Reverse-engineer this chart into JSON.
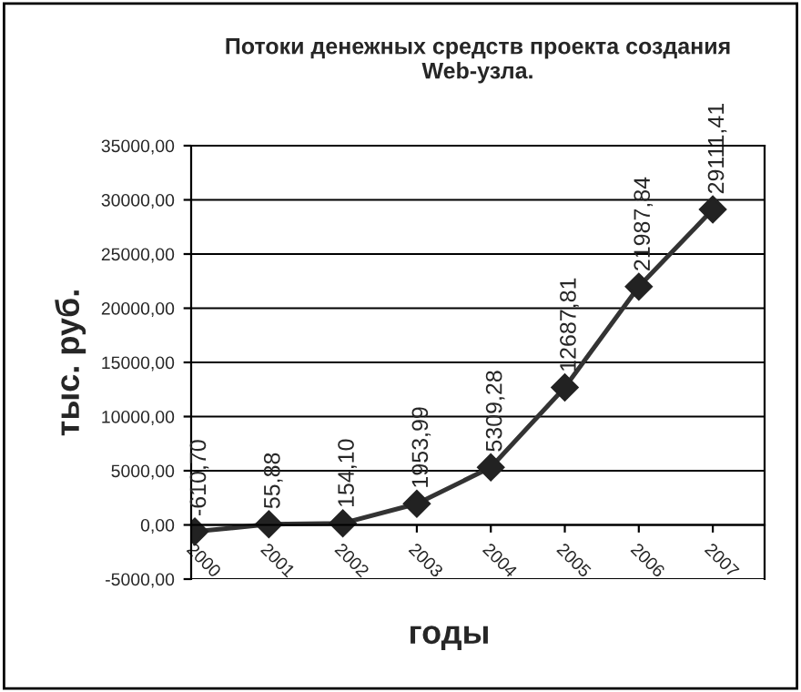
{
  "chart_data": {
    "type": "line",
    "title": "Потоки денежных средств проекта создания\nWeb-узла.",
    "xlabel": "годы",
    "ylabel": "тыс. руб.",
    "categories": [
      "2000",
      "2001",
      "2002",
      "2003",
      "2004",
      "2005",
      "2006",
      "2007"
    ],
    "series": [
      {
        "color": "#333333",
        "values": [
          -610.7,
          55.88,
          154.1,
          1953.99,
          5309.28,
          12687.81,
          21987.84,
          29111.41
        ],
        "value_labels": [
          "-610,70",
          "55,88",
          "154,10",
          "1953,99",
          "5309,28",
          "12687,81",
          "21987,84",
          "29111,41"
        ]
      }
    ],
    "ylim": [
      -5000,
      35000
    ],
    "yticks": [
      {
        "value": -5000,
        "label": "-5000,00"
      },
      {
        "value": 0,
        "label": "0,00"
      },
      {
        "value": 5000,
        "label": "5000,00"
      },
      {
        "value": 10000,
        "label": "10000,00"
      },
      {
        "value": 15000,
        "label": "15000,00"
      },
      {
        "value": 20000,
        "label": "20000,00"
      },
      {
        "value": 25000,
        "label": "25000,00"
      },
      {
        "value": 30000,
        "label": "30000,00"
      },
      {
        "value": 35000,
        "label": "35000,00"
      }
    ],
    "grid": "y",
    "marker": "diamond",
    "line_style": "solid",
    "legend": false
  }
}
